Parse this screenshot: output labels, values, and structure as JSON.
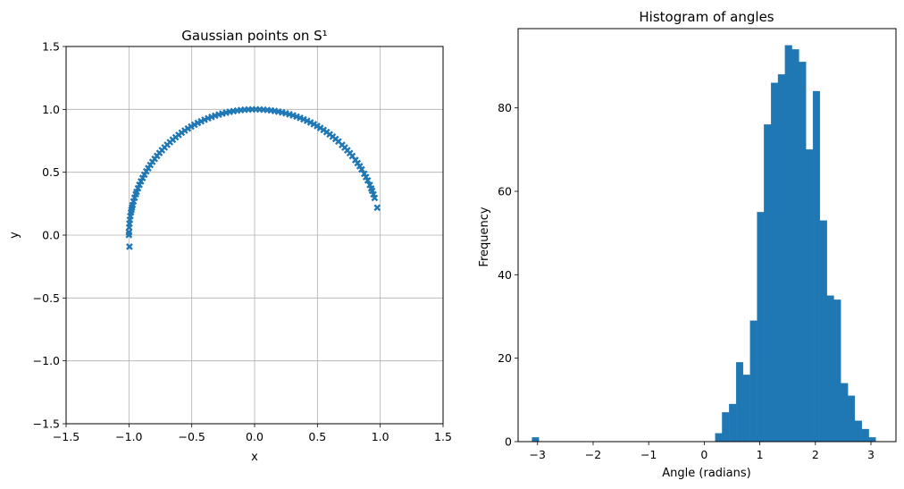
{
  "chart_data": [
    {
      "type": "scatter",
      "title": "Gaussian points on S¹",
      "xlabel": "x",
      "ylabel": "y",
      "xlim": [
        -1.5,
        1.5
      ],
      "ylim": [
        -1.5,
        1.5
      ],
      "xticks": [
        -1.5,
        -1.0,
        -0.5,
        0.0,
        0.5,
        1.0,
        1.5
      ],
      "yticks": [
        -1.5,
        -1.0,
        -0.5,
        0.0,
        0.5,
        1.0,
        1.5
      ],
      "xtick_labels": [
        "−1.5",
        "−1.0",
        "−0.5",
        "0.0",
        "0.5",
        "1.0",
        "1.5"
      ],
      "ytick_labels": [
        "−1.5",
        "−1.0",
        "−0.5",
        "0.0",
        "0.5",
        "1.0",
        "1.5"
      ],
      "grid": true,
      "marker": "x",
      "color": "#1f77b4",
      "angles_radians": [
        -3.05,
        0.22,
        0.3,
        0.33,
        0.36,
        0.38,
        0.41,
        0.45,
        0.48,
        0.51,
        0.55,
        0.58,
        0.61,
        0.64,
        0.68,
        0.71,
        0.74,
        0.77,
        0.8,
        0.84,
        0.87,
        0.9,
        0.93,
        0.96,
        0.99,
        1.02,
        1.05,
        1.08,
        1.11,
        1.14,
        1.17,
        1.2,
        1.23,
        1.26,
        1.29,
        1.32,
        1.35,
        1.38,
        1.41,
        1.44,
        1.47,
        1.5,
        1.53,
        1.56,
        1.59,
        1.62,
        1.65,
        1.68,
        1.71,
        1.74,
        1.77,
        1.8,
        1.83,
        1.86,
        1.89,
        1.92,
        1.95,
        1.98,
        2.01,
        2.04,
        2.07,
        2.1,
        2.13,
        2.16,
        2.19,
        2.22,
        2.25,
        2.28,
        2.31,
        2.34,
        2.37,
        2.4,
        2.43,
        2.46,
        2.49,
        2.52,
        2.55,
        2.58,
        2.61,
        2.64,
        2.67,
        2.7,
        2.73,
        2.76,
        2.79,
        2.81,
        2.84,
        2.87,
        2.9,
        2.92,
        2.94,
        2.96,
        2.99,
        3.02,
        3.05,
        3.08,
        3.12,
        3.14
      ]
    },
    {
      "type": "bar",
      "title": "Histogram of angles",
      "xlabel": "Angle (radians)",
      "ylabel": "Frequency",
      "xlim": [
        -3.35,
        3.45
      ],
      "ylim": [
        0,
        99
      ],
      "xticks": [
        -3,
        -2,
        -1,
        0,
        1,
        2,
        3
      ],
      "yticks": [
        0,
        20,
        40,
        60,
        80
      ],
      "xtick_labels": [
        "−3",
        "−2",
        "−1",
        "0",
        "1",
        "2",
        "3"
      ],
      "ytick_labels": [
        "0",
        "20",
        "40",
        "60",
        "80"
      ],
      "grid": false,
      "color": "#1f77b4",
      "bin_width": 0.1257,
      "bins": [
        {
          "left": -3.1,
          "count": 1
        },
        {
          "left": 0.197,
          "count": 2
        },
        {
          "left": 0.322,
          "count": 7
        },
        {
          "left": 0.448,
          "count": 9
        },
        {
          "left": 0.574,
          "count": 19
        },
        {
          "left": 0.699,
          "count": 16
        },
        {
          "left": 0.825,
          "count": 29
        },
        {
          "left": 0.951,
          "count": 55
        },
        {
          "left": 1.076,
          "count": 76
        },
        {
          "left": 1.202,
          "count": 86
        },
        {
          "left": 1.328,
          "count": 88
        },
        {
          "left": 1.453,
          "count": 95
        },
        {
          "left": 1.579,
          "count": 94
        },
        {
          "left": 1.705,
          "count": 91
        },
        {
          "left": 1.83,
          "count": 70
        },
        {
          "left": 1.956,
          "count": 84
        },
        {
          "left": 2.082,
          "count": 53
        },
        {
          "left": 2.207,
          "count": 35
        },
        {
          "left": 2.333,
          "count": 34
        },
        {
          "left": 2.459,
          "count": 14
        },
        {
          "left": 2.584,
          "count": 11
        },
        {
          "left": 2.71,
          "count": 5
        },
        {
          "left": 2.836,
          "count": 3
        },
        {
          "left": 2.961,
          "count": 1
        }
      ]
    }
  ]
}
